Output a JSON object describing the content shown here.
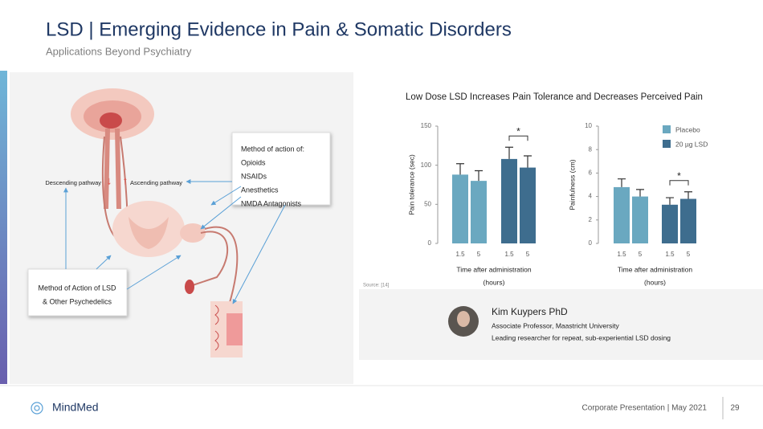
{
  "header": {
    "title": "LSD | Emerging Evidence in Pain & Somatic Disorders",
    "subtitle": "Applications Beyond Psychiatry"
  },
  "diagram": {
    "descending": "Descending pathway",
    "ascending": "Ascending pathway",
    "moa_box": {
      "title": "Method of action of:",
      "items": [
        "Opioids",
        "NSAIDs",
        "Anesthetics",
        "NMDA Antagonists"
      ]
    },
    "lsd_box": {
      "lines": [
        "Method of Action of LSD",
        "& Other Psychedelics"
      ]
    }
  },
  "figure": {
    "title": "Low Dose LSD Increases Pain Tolerance and Decreases Perceived Pain",
    "source": "Source: [14]",
    "legend": [
      {
        "name": "Placebo",
        "color": "#6aa8c0"
      },
      {
        "name": "20 µg LSD",
        "color": "#3e6d8e"
      }
    ],
    "charts": [
      {
        "type": "bar",
        "y_label": "Pain tolerance (sec)",
        "x_label": [
          "Time after administration",
          "(hours)"
        ],
        "ylim": [
          0,
          150
        ],
        "yticks": [
          0,
          50,
          100,
          150
        ],
        "categories": [
          "1.5",
          "5"
        ],
        "series": [
          {
            "values": [
              88,
              80
            ],
            "errors": [
              14,
              13
            ]
          },
          {
            "values": [
              108,
              97
            ],
            "errors": [
              15,
              15
            ]
          }
        ],
        "annotation": "*"
      },
      {
        "type": "bar",
        "y_label": "Painfulness (cm)",
        "x_label": [
          "Time after administration",
          "(hours)"
        ],
        "ylim": [
          0,
          10
        ],
        "yticks": [
          0,
          2,
          4,
          6,
          8,
          10
        ],
        "categories": [
          "1.5",
          "5"
        ],
        "series": [
          {
            "values": [
              4.8,
              4.0
            ],
            "errors": [
              0.7,
              0.6
            ]
          },
          {
            "values": [
              3.3,
              3.8
            ],
            "errors": [
              0.6,
              0.6
            ]
          }
        ],
        "annotation": "*"
      }
    ]
  },
  "profile": {
    "name": "Kim Kuypers PhD",
    "role": "Associate Professor,  Maastricht University",
    "description": "Leading researcher for repeat, sub-experiential LSD dosing"
  },
  "footer": {
    "brand": "MindMed",
    "presentation": "Corporate Presentation | May 2021",
    "page": "29"
  }
}
